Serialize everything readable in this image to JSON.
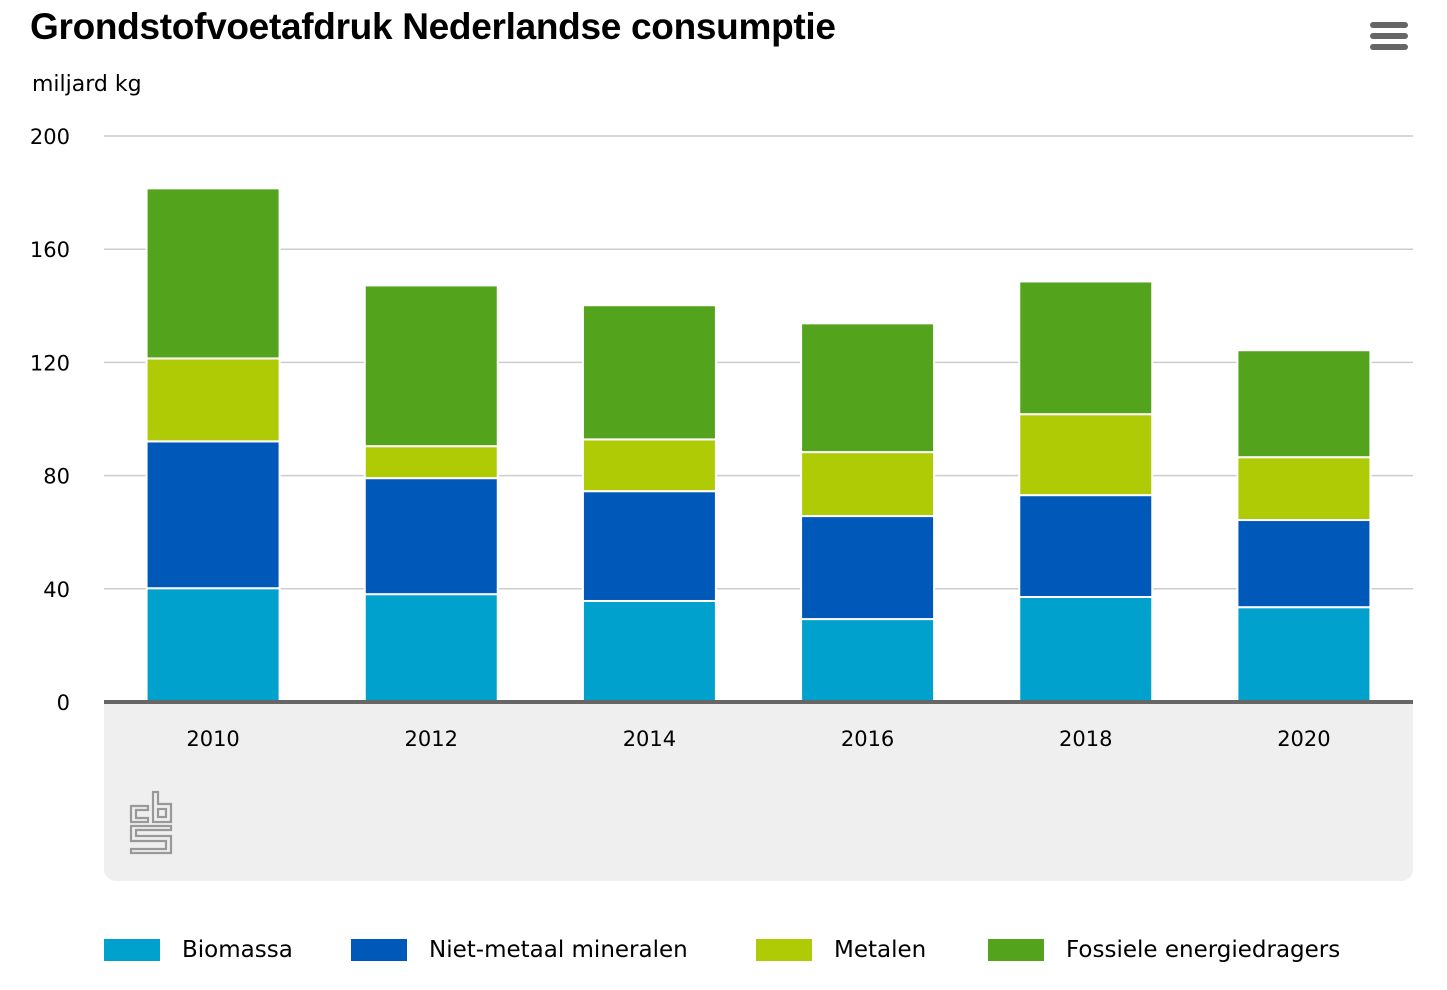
{
  "header": {
    "title": "Grondstofvoetafdruk Nederlandse consumptie",
    "unit_label": "miljard kg",
    "menu_icon": "hamburger-menu-icon"
  },
  "logo": {
    "name": "cbs-logo",
    "text": "cbs"
  },
  "chart_data": {
    "type": "bar",
    "stacked": true,
    "title": "Grondstofvoetafdruk Nederlandse consumptie",
    "xlabel": "",
    "ylabel": "miljard kg",
    "ylim": [
      0,
      200
    ],
    "yticks": [
      "0",
      "40",
      "80",
      "120",
      "160",
      "200"
    ],
    "ytick_values": [
      0,
      40,
      80,
      120,
      160,
      200
    ],
    "grid": true,
    "legend_position": "bottom",
    "categories": [
      "2010",
      "2012",
      "2014",
      "2016",
      "2018",
      "2020"
    ],
    "series": [
      {
        "name": "Biomassa",
        "color": "#00a1cd",
        "values": [
          40.2,
          38.1,
          35.7,
          29.3,
          37.1,
          33.5
        ]
      },
      {
        "name": "Niet-metaal mineralen",
        "color": "#0058b8",
        "values": [
          51.9,
          41.0,
          38.8,
          36.4,
          36.0,
          30.8
        ]
      },
      {
        "name": "Metalen",
        "color": "#afcb05",
        "values": [
          29.3,
          11.3,
          18.3,
          22.6,
          28.6,
          22.2
        ]
      },
      {
        "name": "Fossiele energiedragers",
        "color": "#53a31d",
        "values": [
          60.1,
          56.8,
          47.4,
          45.5,
          46.9,
          37.8
        ]
      }
    ]
  }
}
